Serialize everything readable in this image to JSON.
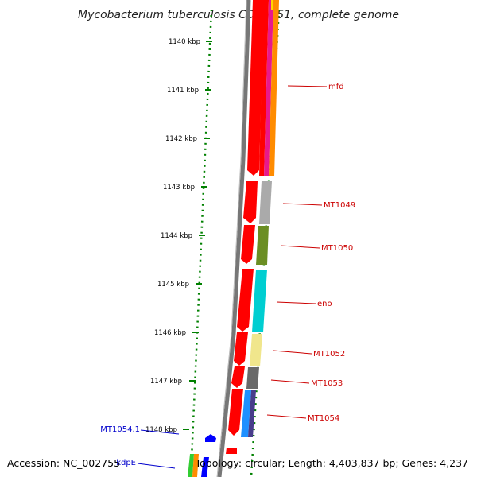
{
  "title": "Mycobacterium tuberculosis CDC1551, complete genome",
  "scale_labels": [
    "1140 kbp",
    "1141 kbp",
    "1142 kbp",
    "1143 kbp",
    "1144 kbp",
    "1145 kbp",
    "1146 kbp",
    "1147 kbp",
    "1148 kbp"
  ],
  "gene_labels": [
    "mfd",
    "MT1049",
    "MT1050",
    "eno",
    "MT1052",
    "MT1053",
    "MT1054"
  ],
  "blue_labels": [
    "MT1054.1",
    "kdpE"
  ],
  "footer": {
    "accession": "Accession: NC_002755",
    "topology": "Topology: circular; Length: 4,403,837 bp; Genes: 4,237"
  },
  "colors": {
    "cds": "#ff0000",
    "backbone": "#808080",
    "scale": "#008000",
    "label_red": "#cc0000",
    "label_blue": "#0000cc",
    "cog_magenta": "#e8198c",
    "cog_orange": "#ff8c00",
    "cog_gray": "#aaaaaa",
    "cog_olive": "#6b8e23",
    "cog_cyan": "#00ced1",
    "cog_khaki": "#f0e68c",
    "cog_dimgray": "#696969",
    "cog_dodger": "#1e90ff",
    "cog_slate": "#483d8b",
    "cog_blue": "#0000ff",
    "cog_green": "#32cd32"
  }
}
